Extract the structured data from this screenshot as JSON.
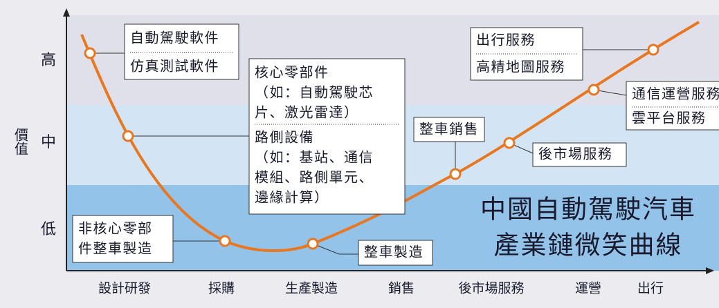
{
  "y_axis": {
    "label": "價值",
    "levels": [
      "高",
      "中",
      "低"
    ]
  },
  "x_axis": {
    "categories": [
      "設計研發",
      "採購",
      "生產製造",
      "銷售",
      "後市場服務",
      "運營",
      "出行"
    ]
  },
  "title": {
    "lines": [
      "中國自動駕駛汽車",
      "產業鏈微笑曲線"
    ]
  },
  "callouts": [
    {
      "sections": [
        {
          "lines": [
            "自動駕駛軟件"
          ]
        },
        {
          "lines": [
            "仿真測試軟件"
          ]
        }
      ]
    },
    {
      "sections": [
        {
          "lines": [
            "核心零部件",
            "（如：自動駕駛芯",
            "片、激光雷達）"
          ]
        },
        {
          "lines": [
            "路側設備",
            "（如：基站、通信",
            "模組、路側單元、",
            "邊緣計算）"
          ]
        }
      ]
    },
    {
      "sections": [
        {
          "lines": [
            "非核心零部",
            "件整車製造"
          ]
        }
      ]
    },
    {
      "sections": [
        {
          "lines": [
            "整車製造"
          ]
        }
      ]
    },
    {
      "sections": [
        {
          "lines": [
            "整車銷售"
          ]
        }
      ]
    },
    {
      "sections": [
        {
          "lines": [
            "後市場服務"
          ]
        }
      ]
    },
    {
      "sections": [
        {
          "lines": [
            "出行服務"
          ]
        },
        {
          "lines": [
            "高精地圖服務"
          ]
        }
      ]
    },
    {
      "sections": [
        {
          "lines": [
            "通信運營服務"
          ]
        },
        {
          "lines": [
            "雲平台服務"
          ]
        }
      ]
    }
  ]
}
